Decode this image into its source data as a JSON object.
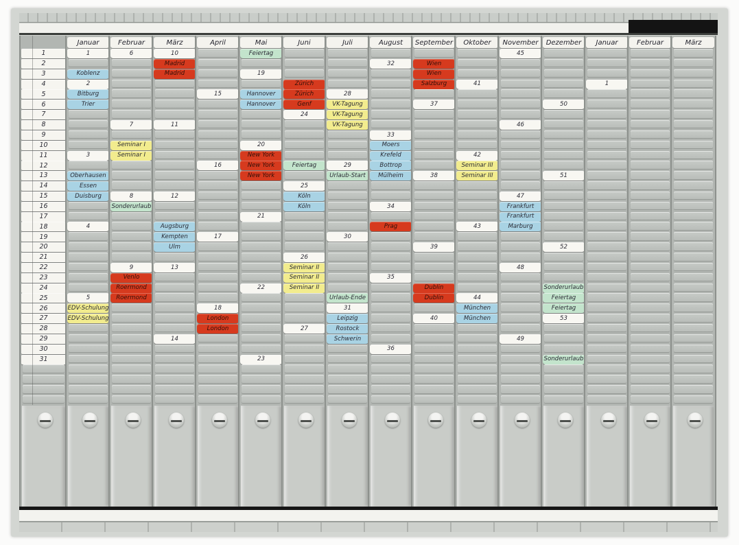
{
  "board": {
    "kind": "t-card-year-planner",
    "palette": {
      "board_gray": "#b2b6b2",
      "card_white": "#f8f7f2",
      "card_blue": "#a9d3e4",
      "card_yellow": "#f2ec8e",
      "card_red": "#d63a1e",
      "card_green": "#c3e4cc"
    },
    "days": [
      "1",
      "2",
      "3",
      "4",
      "5",
      "6",
      "7",
      "8",
      "9",
      "10",
      "11",
      "12",
      "13",
      "14",
      "15",
      "16",
      "17",
      "18",
      "19",
      "20",
      "21",
      "22",
      "23",
      "24",
      "25",
      "26",
      "27",
      "28",
      "29",
      "30",
      "31"
    ],
    "columns": [
      {
        "name": "Januar",
        "cards": [
          [
            1,
            "1",
            "w"
          ],
          [
            3,
            "Koblenz",
            "b"
          ],
          [
            4,
            "2",
            "w"
          ],
          [
            5,
            "Bitburg",
            "b"
          ],
          [
            6,
            "Trier",
            "b"
          ],
          [
            11,
            "3",
            "w"
          ],
          [
            13,
            "Oberhausen",
            "b"
          ],
          [
            14,
            "Essen",
            "b"
          ],
          [
            15,
            "Duisburg",
            "b"
          ],
          [
            18,
            "4",
            "w"
          ],
          [
            25,
            "5",
            "w"
          ],
          [
            26,
            "EDV-Schulung",
            "y"
          ],
          [
            27,
            "EDV-Schulung",
            "y"
          ]
        ]
      },
      {
        "name": "Februar",
        "cards": [
          [
            1,
            "6",
            "w"
          ],
          [
            8,
            "7",
            "w"
          ],
          [
            10,
            "Seminar I",
            "y"
          ],
          [
            11,
            "Seminar I",
            "y"
          ],
          [
            15,
            "8",
            "w"
          ],
          [
            16,
            "Sonderurlaub",
            "g"
          ],
          [
            22,
            "9",
            "w"
          ],
          [
            23,
            "Venlo",
            "r"
          ],
          [
            24,
            "Roermond",
            "r"
          ],
          [
            25,
            "Roermond",
            "r"
          ]
        ]
      },
      {
        "name": "März",
        "cards": [
          [
            1,
            "10",
            "w"
          ],
          [
            2,
            "Madrid",
            "r"
          ],
          [
            3,
            "Madrid",
            "r"
          ],
          [
            8,
            "11",
            "w"
          ],
          [
            15,
            "12",
            "w"
          ],
          [
            18,
            "Augsburg",
            "b"
          ],
          [
            19,
            "Kempten",
            "b"
          ],
          [
            20,
            "Ulm",
            "b"
          ],
          [
            22,
            "13",
            "w"
          ],
          [
            29,
            "14",
            "w"
          ]
        ]
      },
      {
        "name": "April",
        "cards": [
          [
            5,
            "15",
            "w"
          ],
          [
            12,
            "16",
            "w"
          ],
          [
            19,
            "17",
            "w"
          ],
          [
            26,
            "18",
            "w"
          ],
          [
            27,
            "London",
            "r"
          ],
          [
            28,
            "London",
            "r"
          ]
        ]
      },
      {
        "name": "Mai",
        "cards": [
          [
            1,
            "Feiertag",
            "g"
          ],
          [
            3,
            "19",
            "w"
          ],
          [
            5,
            "Hannover",
            "b"
          ],
          [
            6,
            "Hannover",
            "b"
          ],
          [
            10,
            "20",
            "w"
          ],
          [
            11,
            "New York",
            "r"
          ],
          [
            12,
            "New York",
            "r"
          ],
          [
            13,
            "New York",
            "r"
          ],
          [
            17,
            "21",
            "w"
          ],
          [
            24,
            "22",
            "w"
          ],
          [
            31,
            "23",
            "w"
          ]
        ]
      },
      {
        "name": "Juni",
        "cards": [
          [
            4,
            "Zürich",
            "r"
          ],
          [
            5,
            "Zürich",
            "r"
          ],
          [
            6,
            "Genf",
            "r"
          ],
          [
            7,
            "24",
            "w"
          ],
          [
            12,
            "Feiertag",
            "g"
          ],
          [
            14,
            "25",
            "w"
          ],
          [
            15,
            "Köln",
            "b"
          ],
          [
            16,
            "Köln",
            "b"
          ],
          [
            21,
            "26",
            "w"
          ],
          [
            22,
            "Seminar II",
            "y"
          ],
          [
            23,
            "Seminar II",
            "y"
          ],
          [
            24,
            "Seminar II",
            "y"
          ],
          [
            28,
            "27",
            "w"
          ]
        ]
      },
      {
        "name": "Juli",
        "cards": [
          [
            5,
            "28",
            "w"
          ],
          [
            6,
            "VK-Tagung",
            "y"
          ],
          [
            7,
            "VK-Tagung",
            "y"
          ],
          [
            8,
            "VK-Tagung",
            "y"
          ],
          [
            12,
            "29",
            "w"
          ],
          [
            13,
            "Urlaub-Start",
            "g"
          ],
          [
            19,
            "30",
            "w"
          ],
          [
            25,
            "Urlaub-Ende",
            "g"
          ],
          [
            26,
            "31",
            "w"
          ],
          [
            27,
            "Leipzig",
            "b"
          ],
          [
            28,
            "Rostock",
            "b"
          ],
          [
            29,
            "Schwerin",
            "b"
          ]
        ]
      },
      {
        "name": "August",
        "cards": [
          [
            2,
            "32",
            "w"
          ],
          [
            9,
            "33",
            "w"
          ],
          [
            10,
            "Moers",
            "b"
          ],
          [
            11,
            "Krefeld",
            "b"
          ],
          [
            12,
            "Bottrop",
            "b"
          ],
          [
            13,
            "Mülheim",
            "b"
          ],
          [
            16,
            "34",
            "w"
          ],
          [
            18,
            "Prag",
            "r"
          ],
          [
            23,
            "35",
            "w"
          ],
          [
            30,
            "36",
            "w"
          ]
        ]
      },
      {
        "name": "September",
        "cards": [
          [
            2,
            "Wien",
            "r"
          ],
          [
            3,
            "Wien",
            "r"
          ],
          [
            4,
            "Salzburg",
            "r"
          ],
          [
            6,
            "37",
            "w"
          ],
          [
            13,
            "38",
            "w"
          ],
          [
            20,
            "39",
            "w"
          ],
          [
            24,
            "Dublin",
            "r"
          ],
          [
            25,
            "Dublin",
            "r"
          ],
          [
            27,
            "40",
            "w"
          ]
        ]
      },
      {
        "name": "Oktober",
        "cards": [
          [
            4,
            "41",
            "w"
          ],
          [
            11,
            "42",
            "w"
          ],
          [
            12,
            "Seminar III",
            "y"
          ],
          [
            13,
            "Seminar III",
            "y"
          ],
          [
            18,
            "43",
            "w"
          ],
          [
            25,
            "44",
            "w"
          ],
          [
            26,
            "München",
            "b"
          ],
          [
            27,
            "München",
            "b"
          ]
        ]
      },
      {
        "name": "November",
        "cards": [
          [
            1,
            "45",
            "w"
          ],
          [
            8,
            "46",
            "w"
          ],
          [
            15,
            "47",
            "w"
          ],
          [
            16,
            "Frankfurt",
            "b"
          ],
          [
            17,
            "Frankfurt",
            "b"
          ],
          [
            18,
            "Marburg",
            "b"
          ],
          [
            22,
            "48",
            "w"
          ],
          [
            29,
            "49",
            "w"
          ]
        ]
      },
      {
        "name": "Dezember",
        "cards": [
          [
            6,
            "50",
            "w"
          ],
          [
            13,
            "51",
            "w"
          ],
          [
            20,
            "52",
            "w"
          ],
          [
            24,
            "Sonderurlaub",
            "g"
          ],
          [
            25,
            "Feiertag",
            "g"
          ],
          [
            26,
            "Feiertag",
            "g"
          ],
          [
            27,
            "53",
            "w"
          ],
          [
            31,
            "Sonderurlaub",
            "g"
          ]
        ]
      },
      {
        "name": "Januar",
        "cards": [
          [
            4,
            "1",
            "w"
          ]
        ]
      },
      {
        "name": "Februar",
        "cards": []
      },
      {
        "name": "März",
        "cards": []
      }
    ]
  }
}
